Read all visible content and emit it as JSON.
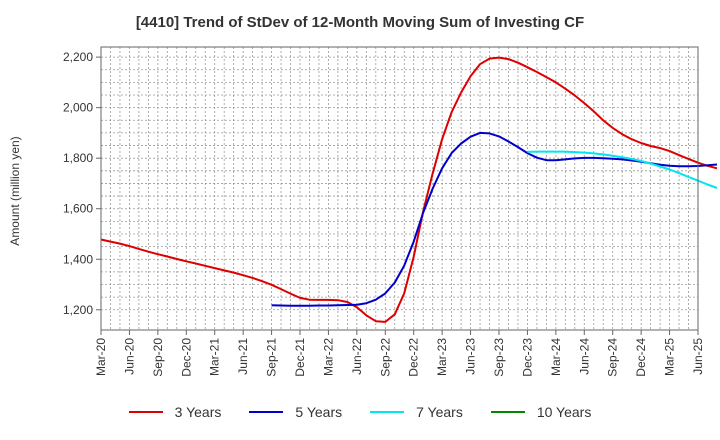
{
  "chart_data": {
    "type": "line",
    "title": "[4410]  Trend of StDev of 12-Month Moving Sum of Investing CF",
    "ylabel": "Amount (million yen)",
    "xlabel": "",
    "ylim": [
      1120,
      2240
    ],
    "yticks": [
      1200,
      1400,
      1600,
      1800,
      2000,
      2200
    ],
    "ytick_labels": [
      "1,200",
      "1,400",
      "1,600",
      "1,800",
      "2,000",
      "2,200"
    ],
    "x_tick_labels": [
      "Mar-20",
      "Jun-20",
      "Sep-20",
      "Dec-20",
      "Mar-21",
      "Jun-21",
      "Sep-21",
      "Dec-21",
      "Mar-22",
      "Jun-22",
      "Sep-22",
      "Dec-22",
      "Mar-23",
      "Jun-23",
      "Sep-23",
      "Dec-23",
      "Mar-24",
      "Jun-24",
      "Sep-24",
      "Dec-24",
      "Mar-25",
      "Jun-25"
    ],
    "x_unit": "month index from Mar-20",
    "grid": true,
    "legend_position": "bottom",
    "series": [
      {
        "name": "3 Years",
        "color": "#dd0000",
        "points": [
          [
            0,
            1478
          ],
          [
            1,
            1470
          ],
          [
            2,
            1462
          ],
          [
            3,
            1452
          ],
          [
            4,
            1441
          ],
          [
            5,
            1430
          ],
          [
            6,
            1420
          ],
          [
            7,
            1411
          ],
          [
            8,
            1401
          ],
          [
            9,
            1392
          ],
          [
            10,
            1383
          ],
          [
            11,
            1374
          ],
          [
            12,
            1365
          ],
          [
            13,
            1356
          ],
          [
            14,
            1347
          ],
          [
            15,
            1337
          ],
          [
            16,
            1326
          ],
          [
            17,
            1313
          ],
          [
            18,
            1299
          ],
          [
            19,
            1282
          ],
          [
            20,
            1264
          ],
          [
            21,
            1247
          ],
          [
            22,
            1240
          ],
          [
            23,
            1239
          ],
          [
            24,
            1239
          ],
          [
            25,
            1238
          ],
          [
            26,
            1231
          ],
          [
            27,
            1210
          ],
          [
            28,
            1178
          ],
          [
            29,
            1155
          ],
          [
            30,
            1152
          ],
          [
            31,
            1182
          ],
          [
            32,
            1265
          ],
          [
            33,
            1410
          ],
          [
            34,
            1590
          ],
          [
            35,
            1740
          ],
          [
            36,
            1875
          ],
          [
            37,
            1982
          ],
          [
            38,
            2060
          ],
          [
            39,
            2125
          ],
          [
            40,
            2172
          ],
          [
            41,
            2194
          ],
          [
            42,
            2198
          ],
          [
            43,
            2192
          ],
          [
            44,
            2178
          ],
          [
            45,
            2160
          ],
          [
            46,
            2141
          ],
          [
            47,
            2121
          ],
          [
            48,
            2100
          ],
          [
            49,
            2075
          ],
          [
            50,
            2048
          ],
          [
            51,
            2018
          ],
          [
            52,
            1985
          ],
          [
            53,
            1950
          ],
          [
            54,
            1920
          ],
          [
            55,
            1895
          ],
          [
            56,
            1875
          ],
          [
            57,
            1860
          ],
          [
            58,
            1848
          ],
          [
            59,
            1840
          ],
          [
            60,
            1828
          ],
          [
            61,
            1812
          ],
          [
            62,
            1797
          ],
          [
            63,
            1782
          ],
          [
            64,
            1770
          ],
          [
            65,
            1760
          ]
        ]
      },
      {
        "name": "5 Years",
        "color": "#0000cc",
        "points": [
          [
            18,
            1218
          ],
          [
            19,
            1217
          ],
          [
            20,
            1216
          ],
          [
            21,
            1216
          ],
          [
            22,
            1216
          ],
          [
            23,
            1217
          ],
          [
            24,
            1217
          ],
          [
            25,
            1218
          ],
          [
            26,
            1219
          ],
          [
            27,
            1220
          ],
          [
            28,
            1226
          ],
          [
            29,
            1240
          ],
          [
            30,
            1265
          ],
          [
            31,
            1308
          ],
          [
            32,
            1375
          ],
          [
            33,
            1470
          ],
          [
            34,
            1585
          ],
          [
            35,
            1680
          ],
          [
            36,
            1760
          ],
          [
            37,
            1820
          ],
          [
            38,
            1858
          ],
          [
            39,
            1885
          ],
          [
            40,
            1900
          ],
          [
            41,
            1898
          ],
          [
            42,
            1886
          ],
          [
            43,
            1866
          ],
          [
            44,
            1844
          ],
          [
            45,
            1820
          ],
          [
            46,
            1802
          ],
          [
            47,
            1792
          ],
          [
            48,
            1792
          ],
          [
            49,
            1795
          ],
          [
            50,
            1799
          ],
          [
            51,
            1801
          ],
          [
            52,
            1801
          ],
          [
            53,
            1800
          ],
          [
            54,
            1798
          ],
          [
            55,
            1795
          ],
          [
            56,
            1791
          ],
          [
            57,
            1786
          ],
          [
            58,
            1780
          ],
          [
            59,
            1774
          ],
          [
            60,
            1770
          ],
          [
            61,
            1768
          ],
          [
            62,
            1768
          ],
          [
            63,
            1769
          ],
          [
            64,
            1772
          ],
          [
            65,
            1775
          ]
        ]
      },
      {
        "name": "7 Years",
        "color": "#00e5ee",
        "points": [
          [
            45,
            1825
          ],
          [
            46,
            1826
          ],
          [
            47,
            1826
          ],
          [
            48,
            1826
          ],
          [
            49,
            1826
          ],
          [
            50,
            1824
          ],
          [
            51,
            1822
          ],
          [
            52,
            1819
          ],
          [
            53,
            1815
          ],
          [
            54,
            1810
          ],
          [
            55,
            1804
          ],
          [
            56,
            1797
          ],
          [
            57,
            1789
          ],
          [
            58,
            1779
          ],
          [
            59,
            1767
          ],
          [
            60,
            1755
          ],
          [
            61,
            1741
          ],
          [
            62,
            1726
          ],
          [
            63,
            1711
          ],
          [
            64,
            1696
          ],
          [
            65,
            1682
          ]
        ]
      },
      {
        "name": "10 Years",
        "color": "#008800",
        "points": []
      }
    ]
  }
}
